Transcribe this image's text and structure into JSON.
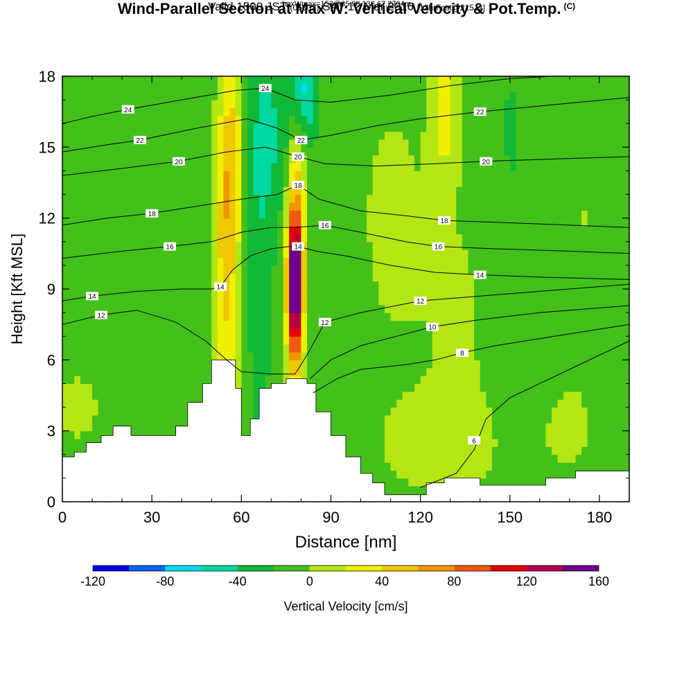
{
  "title": {
    "main": "Wind-Parallel Section at Max W: Vertical Velocity & Pot.Temp.",
    "copyright": "(C)",
    "valid_prefix": "Valid 1500 JST",
    "valid_utc": "(0600Z)",
    "valid_date": "SAT 12 Mar 2016",
    "forecast": "[12hrFcst@2151z]",
    "box": "boxWmax=153@35.98,138.67,2704m"
  },
  "chart_data": {
    "type": "heatmap",
    "xlabel": "Distance [nm]",
    "ylabel": "Height [Kft MSL]",
    "xlim": [
      0,
      190
    ],
    "ylim": [
      0,
      18
    ],
    "x_ticks": [
      0,
      30,
      60,
      90,
      120,
      150,
      180
    ],
    "y_ticks": [
      0,
      3,
      6,
      9,
      12,
      15,
      18
    ],
    "colorbar": {
      "label": "Vertical Velocity [cm/s]",
      "ticks": [
        -120,
        -80,
        -40,
        0,
        40,
        80,
        120,
        160
      ],
      "range": [
        -120,
        160
      ],
      "step": 20,
      "colors": [
        "#0000f0",
        "#0064f0",
        "#00dcf0",
        "#00d8a0",
        "#12b838",
        "#44c01a",
        "#b4e614",
        "#f0f000",
        "#f0c800",
        "#f09600",
        "#f05a10",
        "#e60000",
        "#b40046",
        "#6e008c"
      ]
    },
    "terrain": [
      [
        0,
        1.9
      ],
      [
        4,
        2.1
      ],
      [
        8,
        2.5
      ],
      [
        13,
        2.8
      ],
      [
        17,
        3.2
      ],
      [
        23,
        2.8
      ],
      [
        35,
        2.8
      ],
      [
        38,
        3.2
      ],
      [
        42,
        4.2
      ],
      [
        47,
        5.0
      ],
      [
        50,
        6.0
      ],
      [
        55,
        6.0
      ],
      [
        58,
        4.8
      ],
      [
        60,
        2.8
      ],
      [
        63,
        3.5
      ],
      [
        66,
        4.8
      ],
      [
        70,
        5.0
      ],
      [
        75,
        5.2
      ],
      [
        82,
        5.0
      ],
      [
        85,
        3.8
      ],
      [
        90,
        2.8
      ],
      [
        95,
        1.9
      ],
      [
        100,
        1.2
      ],
      [
        104,
        0.8
      ],
      [
        108,
        0.3
      ],
      [
        118,
        0.3
      ],
      [
        122,
        0.8
      ],
      [
        128,
        1.0
      ],
      [
        135,
        1.0
      ],
      [
        140,
        0.7
      ],
      [
        150,
        0.7
      ],
      [
        162,
        1.0
      ],
      [
        172,
        1.3
      ],
      [
        180,
        1.3
      ],
      [
        190,
        1.3
      ]
    ],
    "velocity_field": {
      "background": -10,
      "features": [
        {
          "x": 55,
          "y": 10.5,
          "sx": 3.0,
          "sy": 4.5,
          "value": 60
        },
        {
          "x": 57,
          "y": 15.0,
          "sx": 2.5,
          "sy": 2.5,
          "value": 40
        },
        {
          "x": 78,
          "y": 9.0,
          "sx": 1.8,
          "sy": 2.2,
          "value": 150
        },
        {
          "x": 78,
          "y": 11.0,
          "sx": 2.2,
          "sy": 3.5,
          "value": 60
        },
        {
          "x": 80,
          "y": 15.0,
          "sx": 2.0,
          "sy": 2.0,
          "value": 20
        },
        {
          "x": 70,
          "y": 15.5,
          "sx": 6.0,
          "sy": 3.0,
          "value": -30
        },
        {
          "x": 81,
          "y": 17.2,
          "sx": 3.0,
          "sy": 1.5,
          "value": -60
        },
        {
          "x": 66,
          "y": 9.0,
          "sx": 3.0,
          "sy": 6.0,
          "value": -20
        },
        {
          "x": 128,
          "y": 16.5,
          "sx": 3.0,
          "sy": 2.0,
          "value": 38
        },
        {
          "x": 5,
          "y": 4.0,
          "sx": 10.0,
          "sy": 2.0,
          "value": 12
        },
        {
          "x": 30,
          "y": 12.0,
          "sx": 8.0,
          "sy": 5.0,
          "value": 10
        },
        {
          "x": 110,
          "y": 12.0,
          "sx": 12.0,
          "sy": 6.0,
          "value": 12
        },
        {
          "x": 135,
          "y": 8.0,
          "sx": 10.0,
          "sy": 5.0,
          "value": 10
        },
        {
          "x": 175,
          "y": 12.0,
          "sx": 8.0,
          "sy": 4.0,
          "value": 10
        },
        {
          "x": 170,
          "y": 3.0,
          "sx": 12.0,
          "sy": 2.5,
          "value": 10
        },
        {
          "x": 125,
          "y": 2.0,
          "sx": 20.0,
          "sy": 2.0,
          "value": 10
        },
        {
          "x": 150,
          "y": 15.0,
          "sx": 5.0,
          "sy": 5.0,
          "value": -12
        }
      ]
    },
    "theta_contours": [
      {
        "level": 6,
        "labels": [
          [
            138,
            2.6
          ]
        ],
        "line": [
          [
            120,
            0.6
          ],
          [
            132,
            1.2
          ],
          [
            138,
            2.2
          ],
          [
            142,
            3.5
          ],
          [
            150,
            4.4
          ],
          [
            165,
            5.3
          ],
          [
            180,
            6.2
          ],
          [
            190,
            6.8
          ]
        ]
      },
      {
        "level": 8,
        "labels": [
          [
            134,
            6.3
          ]
        ],
        "line": [
          [
            84,
            4.6
          ],
          [
            92,
            5.2
          ],
          [
            100,
            5.6
          ],
          [
            115,
            5.8
          ],
          [
            125,
            6.0
          ],
          [
            134,
            6.3
          ],
          [
            145,
            6.6
          ],
          [
            160,
            6.9
          ],
          [
            175,
            7.2
          ],
          [
            190,
            7.5
          ]
        ]
      },
      {
        "level": 10,
        "labels": [
          [
            124,
            7.4
          ]
        ],
        "line": [
          [
            83,
            5.2
          ],
          [
            90,
            6.0
          ],
          [
            100,
            6.6
          ],
          [
            112,
            7.0
          ],
          [
            124,
            7.4
          ],
          [
            140,
            7.7
          ],
          [
            160,
            8.0
          ],
          [
            190,
            8.3
          ]
        ]
      },
      {
        "level": 12,
        "labels": [
          [
            13,
            7.9
          ],
          [
            88,
            7.6
          ],
          [
            120,
            8.5
          ]
        ],
        "line": [
          [
            0,
            7.5
          ],
          [
            13,
            7.9
          ],
          [
            25,
            8.1
          ],
          [
            38,
            7.6
          ],
          [
            48,
            6.8
          ],
          [
            55,
            6.0
          ],
          [
            60,
            5.5
          ],
          [
            70,
            5.4
          ],
          [
            78,
            5.4
          ],
          [
            82,
            6.2
          ],
          [
            88,
            7.6
          ],
          [
            100,
            8.0
          ],
          [
            120,
            8.5
          ],
          [
            140,
            8.7
          ],
          [
            160,
            8.9
          ],
          [
            190,
            9.2
          ]
        ]
      },
      {
        "level": 14,
        "labels": [
          [
            10,
            8.7
          ],
          [
            53,
            9.1
          ],
          [
            79,
            10.8
          ],
          [
            140,
            9.6
          ]
        ],
        "line": [
          [
            0,
            8.5
          ],
          [
            10,
            8.7
          ],
          [
            25,
            8.9
          ],
          [
            40,
            9.0
          ],
          [
            50,
            9.0
          ],
          [
            53,
            9.1
          ],
          [
            57,
            9.8
          ],
          [
            63,
            10.4
          ],
          [
            70,
            10.7
          ],
          [
            76,
            10.8
          ],
          [
            79,
            10.8
          ],
          [
            85,
            10.6
          ],
          [
            95,
            10.4
          ],
          [
            110,
            10.0
          ],
          [
            125,
            9.7
          ],
          [
            140,
            9.6
          ],
          [
            160,
            9.5
          ],
          [
            190,
            9.4
          ]
        ]
      },
      {
        "level": 16,
        "labels": [
          [
            36,
            10.8
          ],
          [
            88,
            11.7
          ],
          [
            126,
            10.8
          ]
        ],
        "line": [
          [
            0,
            10.3
          ],
          [
            20,
            10.6
          ],
          [
            36,
            10.8
          ],
          [
            50,
            11.0
          ],
          [
            60,
            11.4
          ],
          [
            70,
            11.6
          ],
          [
            78,
            11.6
          ],
          [
            88,
            11.7
          ],
          [
            100,
            11.4
          ],
          [
            115,
            11.0
          ],
          [
            126,
            10.8
          ],
          [
            145,
            10.7
          ],
          [
            170,
            10.6
          ],
          [
            190,
            10.5
          ]
        ]
      },
      {
        "level": 18,
        "labels": [
          [
            30,
            12.2
          ],
          [
            79,
            13.4
          ],
          [
            128,
            11.9
          ]
        ],
        "line": [
          [
            0,
            11.7
          ],
          [
            15,
            12.0
          ],
          [
            30,
            12.2
          ],
          [
            45,
            12.5
          ],
          [
            60,
            12.8
          ],
          [
            72,
            13.0
          ],
          [
            79,
            13.4
          ],
          [
            86,
            12.8
          ],
          [
            100,
            12.3
          ],
          [
            115,
            12.1
          ],
          [
            128,
            11.9
          ],
          [
            150,
            11.8
          ],
          [
            190,
            11.6
          ]
        ]
      },
      {
        "level": 20,
        "labels": [
          [
            39,
            14.4
          ],
          [
            79,
            14.6
          ],
          [
            142,
            14.4
          ]
        ],
        "line": [
          [
            0,
            13.8
          ],
          [
            20,
            14.1
          ],
          [
            39,
            14.4
          ],
          [
            55,
            14.8
          ],
          [
            68,
            15.0
          ],
          [
            79,
            14.6
          ],
          [
            88,
            14.3
          ],
          [
            105,
            14.2
          ],
          [
            125,
            14.3
          ],
          [
            142,
            14.4
          ],
          [
            165,
            14.5
          ],
          [
            190,
            14.6
          ]
        ]
      },
      {
        "level": 22,
        "labels": [
          [
            26,
            15.3
          ],
          [
            80,
            15.3
          ],
          [
            140,
            16.5
          ]
        ],
        "line": [
          [
            0,
            14.8
          ],
          [
            15,
            15.1
          ],
          [
            26,
            15.3
          ],
          [
            45,
            15.8
          ],
          [
            62,
            16.2
          ],
          [
            72,
            15.8
          ],
          [
            80,
            15.3
          ],
          [
            90,
            15.5
          ],
          [
            105,
            15.9
          ],
          [
            120,
            16.2
          ],
          [
            140,
            16.5
          ],
          [
            165,
            16.8
          ],
          [
            190,
            17.1
          ]
        ]
      },
      {
        "level": 24,
        "labels": [
          [
            22,
            16.6
          ],
          [
            68,
            17.5
          ]
        ],
        "line": [
          [
            0,
            16.0
          ],
          [
            10,
            16.3
          ],
          [
            22,
            16.6
          ],
          [
            40,
            17.0
          ],
          [
            58,
            17.4
          ],
          [
            68,
            17.5
          ],
          [
            78,
            17.0
          ],
          [
            90,
            16.9
          ],
          [
            110,
            17.2
          ],
          [
            130,
            17.6
          ],
          [
            150,
            17.9
          ],
          [
            165,
            18.0
          ]
        ]
      }
    ]
  }
}
